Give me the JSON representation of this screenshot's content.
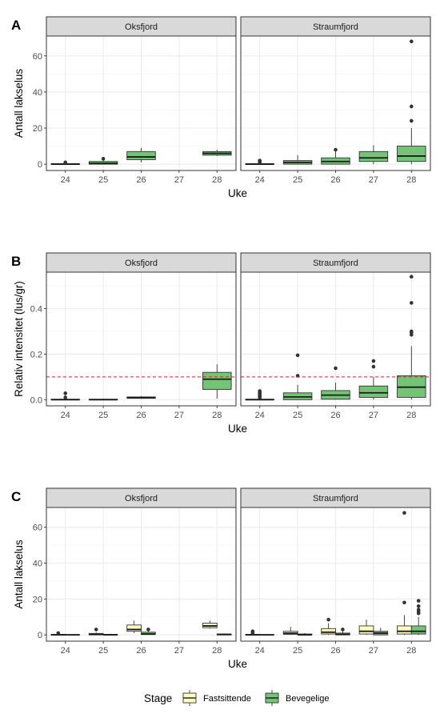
{
  "colors": {
    "bevegelige": "#74c476",
    "fastsittende": "#ffffbf",
    "strip_bg": "#d9d9d9",
    "grid_major": "#ebebeb",
    "grid_minor": "#f5f5f5",
    "ref_line": "#e31a1c",
    "border": "#333333",
    "outlier": "#333333"
  },
  "legend": {
    "title": "Stage",
    "items": [
      {
        "label": "Fastsittende",
        "color": "#ffffbf"
      },
      {
        "label": "Bevegelige",
        "color": "#74c476"
      }
    ]
  },
  "chart_data": [
    {
      "type": "box",
      "panel_label": "A",
      "xlabel": "Uke",
      "ylabel": "Antall lakselus",
      "ylim": [
        -3.5,
        71
      ],
      "yticks": [
        0,
        20,
        40,
        60
      ],
      "categories": [
        "24",
        "25",
        "26",
        "27",
        "28"
      ],
      "facets": [
        {
          "name": "Oksfjord",
          "boxes": [
            {
              "x": "24",
              "stage": "Bevegelige",
              "min": 0,
              "q1": 0,
              "median": 0,
              "q3": 0.3,
              "max": 0.6,
              "outliers": [
                1
              ]
            },
            {
              "x": "25",
              "stage": "Bevegelige",
              "min": 0,
              "q1": 0,
              "median": 0.5,
              "q3": 1.5,
              "max": 2.5,
              "outliers": [
                3
              ]
            },
            {
              "x": "26",
              "stage": "Bevegelige",
              "min": 1,
              "q1": 2.5,
              "median": 4,
              "q3": 7,
              "max": 9,
              "outliers": []
            },
            {
              "x": "28",
              "stage": "Bevegelige",
              "min": 4.5,
              "q1": 5,
              "median": 6,
              "q3": 7,
              "max": 8,
              "outliers": []
            }
          ]
        },
        {
          "name": "Straumfjord",
          "boxes": [
            {
              "x": "24",
              "stage": "Bevegelige",
              "min": 0,
              "q1": 0,
              "median": 0,
              "q3": 0.3,
              "max": 0.6,
              "outliers": [
                1,
                1.5,
                2
              ]
            },
            {
              "x": "25",
              "stage": "Bevegelige",
              "min": 0,
              "q1": 0,
              "median": 1,
              "q3": 2,
              "max": 5,
              "outliers": []
            },
            {
              "x": "26",
              "stage": "Bevegelige",
              "min": 0,
              "q1": 0,
              "median": 1.5,
              "q3": 3.5,
              "max": 7,
              "outliers": [
                8
              ]
            },
            {
              "x": "27",
              "stage": "Bevegelige",
              "min": 0,
              "q1": 1.5,
              "median": 3.5,
              "q3": 7,
              "max": 10.5,
              "outliers": []
            },
            {
              "x": "28",
              "stage": "Bevegelige",
              "min": 0,
              "q1": 1.5,
              "median": 4.5,
              "q3": 10,
              "max": 20,
              "outliers": [
                24,
                32,
                68
              ]
            }
          ]
        }
      ]
    },
    {
      "type": "box",
      "panel_label": "B",
      "xlabel": "Uke",
      "ylabel": "Relativ intensitet (lus/gr)",
      "ylim": [
        -0.027,
        0.56
      ],
      "yticks": [
        0.0,
        0.2,
        0.4
      ],
      "ytick_labels": [
        "0.0",
        "0.2",
        "0.4"
      ],
      "reference_line": 0.1,
      "categories": [
        "24",
        "25",
        "26",
        "27",
        "28"
      ],
      "facets": [
        {
          "name": "Oksfjord",
          "boxes": [
            {
              "x": "24",
              "stage": "Bevegelige",
              "min": 0,
              "q1": 0,
              "median": 0,
              "q3": 0.002,
              "max": 0.004,
              "outliers": [
                0.01,
                0.028
              ]
            },
            {
              "x": "25",
              "stage": "Bevegelige",
              "min": 0,
              "q1": 0,
              "median": 0,
              "q3": 0.002,
              "max": 0.004,
              "outliers": []
            },
            {
              "x": "26",
              "stage": "Bevegelige",
              "min": 0.004,
              "q1": 0.006,
              "median": 0.009,
              "q3": 0.012,
              "max": 0.015,
              "outliers": []
            },
            {
              "x": "28",
              "stage": "Bevegelige",
              "min": 0.005,
              "q1": 0.045,
              "median": 0.09,
              "q3": 0.12,
              "max": 0.155,
              "outliers": []
            }
          ]
        },
        {
          "name": "Straumfjord",
          "boxes": [
            {
              "x": "24",
              "stage": "Bevegelige",
              "min": 0,
              "q1": 0,
              "median": 0,
              "q3": 0.002,
              "max": 0.004,
              "outliers": [
                0.008,
                0.014,
                0.02,
                0.026,
                0.032,
                0.038
              ]
            },
            {
              "x": "25",
              "stage": "Bevegelige",
              "min": 0,
              "q1": 0,
              "median": 0.012,
              "q3": 0.03,
              "max": 0.065,
              "outliers": [
                0.105,
                0.195
              ]
            },
            {
              "x": "26",
              "stage": "Bevegelige",
              "min": 0,
              "q1": 0.002,
              "median": 0.02,
              "q3": 0.04,
              "max": 0.075,
              "outliers": [
                0.138
              ]
            },
            {
              "x": "27",
              "stage": "Bevegelige",
              "min": 0,
              "q1": 0.01,
              "median": 0.03,
              "q3": 0.06,
              "max": 0.1,
              "outliers": [
                0.145,
                0.17
              ]
            },
            {
              "x": "28",
              "stage": "Bevegelige",
              "min": 0,
              "q1": 0.01,
              "median": 0.055,
              "q3": 0.105,
              "max": 0.235,
              "outliers": [
                0.285,
                0.295,
                0.3,
                0.425,
                0.54
              ]
            }
          ]
        }
      ]
    },
    {
      "type": "box",
      "panel_label": "C",
      "xlabel": "Uke",
      "ylabel": "Antall lakselus",
      "ylim": [
        -3.5,
        71
      ],
      "yticks": [
        0,
        20,
        40,
        60
      ],
      "categories": [
        "24",
        "25",
        "26",
        "27",
        "28"
      ],
      "facets": [
        {
          "name": "Oksfjord",
          "boxes": [
            {
              "x": "24",
              "stage": "Fastsittende",
              "min": 0,
              "q1": 0,
              "median": 0,
              "q3": 0.3,
              "max": 0.6,
              "outliers": [
                1
              ]
            },
            {
              "x": "24",
              "stage": "Bevegelige",
              "min": 0,
              "q1": 0,
              "median": 0,
              "q3": 0.2,
              "max": 0.4,
              "outliers": []
            },
            {
              "x": "25",
              "stage": "Fastsittende",
              "min": 0,
              "q1": 0,
              "median": 0.3,
              "q3": 0.8,
              "max": 1.5,
              "outliers": [
                3
              ]
            },
            {
              "x": "25",
              "stage": "Bevegelige",
              "min": 0,
              "q1": 0,
              "median": 0,
              "q3": 0.3,
              "max": 0.6,
              "outliers": []
            },
            {
              "x": "26",
              "stage": "Fastsittende",
              "min": 1,
              "q1": 2,
              "median": 3,
              "q3": 5.5,
              "max": 8,
              "outliers": []
            },
            {
              "x": "26",
              "stage": "Bevegelige",
              "min": 0,
              "q1": 0.2,
              "median": 0.5,
              "q3": 1.5,
              "max": 2,
              "outliers": [
                3
              ]
            },
            {
              "x": "28",
              "stage": "Fastsittende",
              "min": 3.5,
              "q1": 4,
              "median": 5,
              "q3": 6.5,
              "max": 8,
              "outliers": []
            },
            {
              "x": "28",
              "stage": "Bevegelige",
              "min": 0,
              "q1": 0,
              "median": 0.2,
              "q3": 0.5,
              "max": 0.8,
              "outliers": []
            }
          ]
        },
        {
          "name": "Straumfjord",
          "boxes": [
            {
              "x": "24",
              "stage": "Fastsittende",
              "min": 0,
              "q1": 0,
              "median": 0,
              "q3": 0.3,
              "max": 0.6,
              "outliers": [
                1,
                2
              ]
            },
            {
              "x": "24",
              "stage": "Bevegelige",
              "min": 0,
              "q1": 0,
              "median": 0,
              "q3": 0.2,
              "max": 0.4,
              "outliers": []
            },
            {
              "x": "25",
              "stage": "Fastsittende",
              "min": 0,
              "q1": 0.3,
              "median": 1,
              "q3": 2,
              "max": 4.5,
              "outliers": []
            },
            {
              "x": "25",
              "stage": "Bevegelige",
              "min": 0,
              "q1": 0,
              "median": 0,
              "q3": 0.5,
              "max": 1,
              "outliers": []
            },
            {
              "x": "26",
              "stage": "Fastsittende",
              "min": 0,
              "q1": 0.5,
              "median": 1.5,
              "q3": 3.5,
              "max": 6.5,
              "outliers": [
                8.5
              ]
            },
            {
              "x": "26",
              "stage": "Bevegelige",
              "min": 0,
              "q1": 0,
              "median": 0.3,
              "q3": 1,
              "max": 2,
              "outliers": [
                3
              ]
            },
            {
              "x": "27",
              "stage": "Fastsittende",
              "min": 0,
              "q1": 0.5,
              "median": 2,
              "q3": 5,
              "max": 8.5,
              "outliers": []
            },
            {
              "x": "27",
              "stage": "Bevegelige",
              "min": 0,
              "q1": 0,
              "median": 1,
              "q3": 2,
              "max": 4,
              "outliers": []
            },
            {
              "x": "28",
              "stage": "Fastsittende",
              "min": 0,
              "q1": 0.5,
              "median": 2,
              "q3": 5,
              "max": 11,
              "outliers": [
                18,
                68
              ]
            },
            {
              "x": "28",
              "stage": "Bevegelige",
              "min": 0,
              "q1": 0.5,
              "median": 2,
              "q3": 5,
              "max": 10,
              "outliers": [
                12,
                13,
                14,
                16,
                19
              ]
            }
          ]
        }
      ]
    }
  ]
}
